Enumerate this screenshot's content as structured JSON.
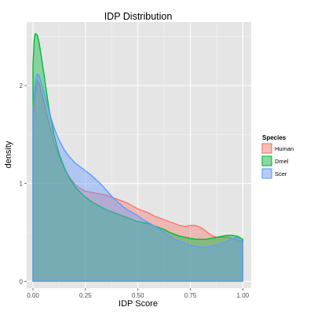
{
  "chart_data": {
    "type": "area",
    "title": "IDP Distribution",
    "xlabel": "IDP Score",
    "ylabel": "density",
    "xlim": [
      -0.03,
      1.04
    ],
    "ylim": [
      -0.07,
      2.65
    ],
    "x_ticks": [
      0.0,
      0.25,
      0.5,
      0.75,
      1.0
    ],
    "x_tick_labels": [
      "0.00",
      "0.25",
      "0.50",
      "0.75",
      "1.00"
    ],
    "y_ticks": [
      0,
      1,
      2
    ],
    "y_tick_labels": [
      "0",
      "1",
      "2"
    ],
    "grid": true,
    "legend": {
      "title": "Species",
      "position": "right"
    },
    "series": [
      {
        "name": "Human",
        "fill": "#F8766D",
        "points": [
          [
            0.0,
            0.0
          ],
          [
            0.0,
            1.62
          ],
          [
            0.01,
            1.92
          ],
          [
            0.02,
            2.05
          ],
          [
            0.03,
            2.02
          ],
          [
            0.05,
            1.85
          ],
          [
            0.075,
            1.62
          ],
          [
            0.1,
            1.42
          ],
          [
            0.125,
            1.27
          ],
          [
            0.15,
            1.15
          ],
          [
            0.175,
            1.06
          ],
          [
            0.2,
            0.99
          ],
          [
            0.225,
            0.95
          ],
          [
            0.25,
            0.92
          ],
          [
            0.275,
            0.91
          ],
          [
            0.3,
            0.9
          ],
          [
            0.325,
            0.89
          ],
          [
            0.35,
            0.88
          ],
          [
            0.375,
            0.86
          ],
          [
            0.4,
            0.84
          ],
          [
            0.425,
            0.82
          ],
          [
            0.45,
            0.8
          ],
          [
            0.475,
            0.77
          ],
          [
            0.5,
            0.74
          ],
          [
            0.525,
            0.72
          ],
          [
            0.55,
            0.7
          ],
          [
            0.575,
            0.67
          ],
          [
            0.6,
            0.65
          ],
          [
            0.625,
            0.63
          ],
          [
            0.65,
            0.61
          ],
          [
            0.675,
            0.59
          ],
          [
            0.7,
            0.57
          ],
          [
            0.725,
            0.56
          ],
          [
            0.75,
            0.57
          ],
          [
            0.775,
            0.57
          ],
          [
            0.8,
            0.55
          ],
          [
            0.825,
            0.51
          ],
          [
            0.85,
            0.47
          ],
          [
            0.875,
            0.45
          ],
          [
            0.9,
            0.45
          ],
          [
            0.925,
            0.45
          ],
          [
            0.95,
            0.44
          ],
          [
            0.975,
            0.42
          ],
          [
            1.0,
            0.39
          ],
          [
            1.0,
            0.0
          ]
        ]
      },
      {
        "name": "Dmel",
        "fill": "#00BA38",
        "points": [
          [
            0.0,
            0.0
          ],
          [
            0.0,
            2.2
          ],
          [
            0.005,
            2.45
          ],
          [
            0.01,
            2.53
          ],
          [
            0.02,
            2.52
          ],
          [
            0.03,
            2.43
          ],
          [
            0.05,
            2.15
          ],
          [
            0.075,
            1.78
          ],
          [
            0.1,
            1.5
          ],
          [
            0.125,
            1.3
          ],
          [
            0.15,
            1.16
          ],
          [
            0.175,
            1.05
          ],
          [
            0.2,
            0.97
          ],
          [
            0.225,
            0.91
          ],
          [
            0.25,
            0.86
          ],
          [
            0.275,
            0.82
          ],
          [
            0.3,
            0.79
          ],
          [
            0.325,
            0.76
          ],
          [
            0.35,
            0.73
          ],
          [
            0.375,
            0.71
          ],
          [
            0.4,
            0.69
          ],
          [
            0.425,
            0.67
          ],
          [
            0.45,
            0.65
          ],
          [
            0.475,
            0.63
          ],
          [
            0.5,
            0.61
          ],
          [
            0.525,
            0.6
          ],
          [
            0.55,
            0.59
          ],
          [
            0.575,
            0.57
          ],
          [
            0.6,
            0.55
          ],
          [
            0.625,
            0.53
          ],
          [
            0.65,
            0.5
          ],
          [
            0.675,
            0.48
          ],
          [
            0.7,
            0.46
          ],
          [
            0.725,
            0.45
          ],
          [
            0.75,
            0.44
          ],
          [
            0.775,
            0.43
          ],
          [
            0.8,
            0.43
          ],
          [
            0.825,
            0.43
          ],
          [
            0.85,
            0.44
          ],
          [
            0.875,
            0.45
          ],
          [
            0.9,
            0.46
          ],
          [
            0.925,
            0.47
          ],
          [
            0.95,
            0.47
          ],
          [
            0.975,
            0.46
          ],
          [
            1.0,
            0.43
          ],
          [
            1.0,
            0.0
          ]
        ]
      },
      {
        "name": "Scer",
        "fill": "#619CFF",
        "points": [
          [
            0.0,
            0.0
          ],
          [
            0.0,
            1.75
          ],
          [
            0.01,
            2.02
          ],
          [
            0.02,
            2.12
          ],
          [
            0.03,
            2.1
          ],
          [
            0.05,
            1.95
          ],
          [
            0.075,
            1.75
          ],
          [
            0.1,
            1.57
          ],
          [
            0.125,
            1.44
          ],
          [
            0.15,
            1.34
          ],
          [
            0.175,
            1.27
          ],
          [
            0.2,
            1.21
          ],
          [
            0.225,
            1.17
          ],
          [
            0.25,
            1.13
          ],
          [
            0.275,
            1.09
          ],
          [
            0.3,
            1.04
          ],
          [
            0.325,
            0.99
          ],
          [
            0.35,
            0.93
          ],
          [
            0.375,
            0.87
          ],
          [
            0.4,
            0.82
          ],
          [
            0.425,
            0.77
          ],
          [
            0.45,
            0.73
          ],
          [
            0.475,
            0.7
          ],
          [
            0.5,
            0.67
          ],
          [
            0.525,
            0.63
          ],
          [
            0.55,
            0.6
          ],
          [
            0.575,
            0.57
          ],
          [
            0.6,
            0.54
          ],
          [
            0.625,
            0.5
          ],
          [
            0.65,
            0.46
          ],
          [
            0.675,
            0.43
          ],
          [
            0.7,
            0.41
          ],
          [
            0.725,
            0.39
          ],
          [
            0.75,
            0.37
          ],
          [
            0.775,
            0.36
          ],
          [
            0.8,
            0.35
          ],
          [
            0.825,
            0.35
          ],
          [
            0.85,
            0.36
          ],
          [
            0.875,
            0.37
          ],
          [
            0.9,
            0.39
          ],
          [
            0.925,
            0.41
          ],
          [
            0.95,
            0.44
          ],
          [
            0.975,
            0.45
          ],
          [
            1.0,
            0.4
          ],
          [
            1.0,
            0.0
          ]
        ]
      }
    ]
  }
}
